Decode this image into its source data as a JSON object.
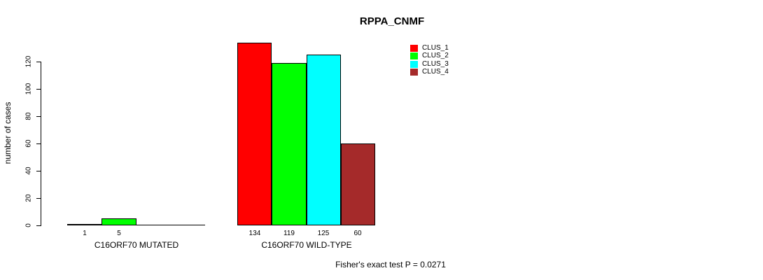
{
  "chart_data": {
    "type": "bar",
    "title": "RPPA_CNMF",
    "ylabel": "number of cases",
    "annotation": "Fisher's exact test P = 0.0271",
    "yticks": [
      0,
      20,
      40,
      60,
      80,
      100,
      120
    ],
    "ylim": [
      0,
      134
    ],
    "grid": false,
    "legend_position": "top-right",
    "axis_color": "#000000",
    "text_color": "#000000",
    "background": "#FFFFFF",
    "series": [
      {
        "name": "CLUS_1",
        "color": "#FF0000"
      },
      {
        "name": "CLUS_2",
        "color": "#00FF00"
      },
      {
        "name": "CLUS_3",
        "color": "#00FFFF"
      },
      {
        "name": "CLUS_4",
        "color": "#A52A2A"
      }
    ],
    "groups": [
      {
        "label": "C16ORF70 MUTATED",
        "values": [
          1,
          5,
          0,
          0
        ],
        "bar_labels": [
          "1",
          "5",
          "",
          ""
        ]
      },
      {
        "label": "C16ORF70 WILD-TYPE",
        "values": [
          134,
          119,
          125,
          60
        ],
        "bar_labels": [
          "134",
          "119",
          "125",
          "60"
        ]
      }
    ]
  }
}
